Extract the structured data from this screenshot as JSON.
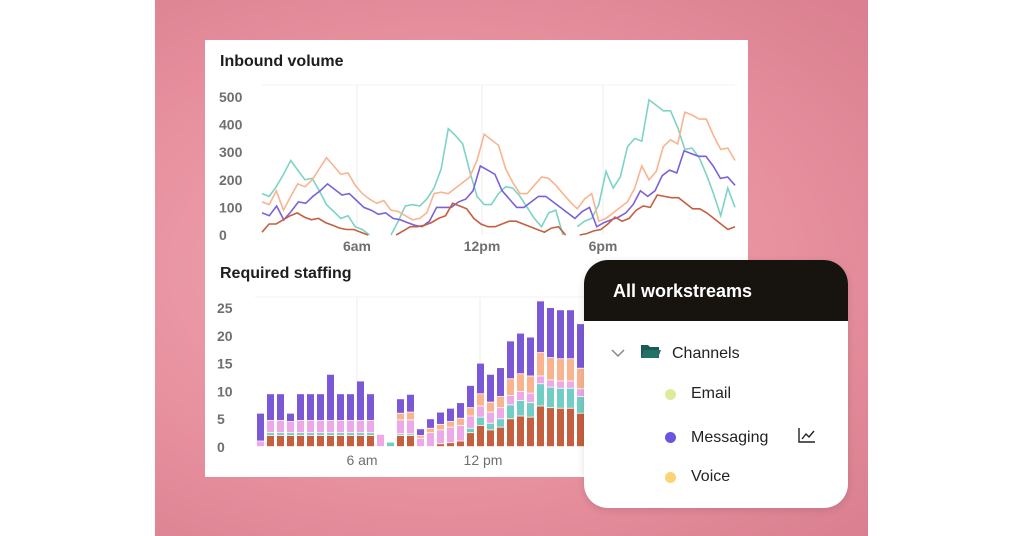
{
  "chart_data": [
    {
      "type": "line",
      "title": "Inbound volume",
      "ylim": [
        0,
        500
      ],
      "yticks": [
        "0",
        "100",
        "200",
        "300",
        "400",
        "500"
      ],
      "xticks": [
        "6am",
        "12pm",
        "6pm"
      ],
      "series": [
        {
          "name": "teal",
          "color": "#7dd3c6",
          "values": [
            150,
            140,
            175,
            220,
            270,
            235,
            200,
            205,
            160,
            110,
            85,
            60,
            70,
            30,
            20,
            0,
            null,
            null,
            0,
            50,
            105,
            110,
            105,
            130,
            170,
            240,
            385,
            360,
            330,
            230,
            140,
            110,
            110,
            150,
            175,
            170,
            140,
            100,
            60,
            30,
            80,
            90,
            0,
            null,
            30,
            50,
            60,
            110,
            230,
            170,
            210,
            320,
            350,
            340,
            490,
            470,
            450,
            450,
            390,
            310,
            315,
            280,
            220,
            150,
            70,
            170,
            100
          ]
        },
        {
          "name": "orange",
          "color": "#f9b48f",
          "values": [
            120,
            110,
            160,
            90,
            140,
            185,
            175,
            200,
            240,
            280,
            250,
            220,
            225,
            180,
            150,
            130,
            115,
            125,
            90,
            85,
            70,
            55,
            60,
            80,
            150,
            155,
            150,
            170,
            190,
            210,
            270,
            365,
            345,
            325,
            240,
            190,
            150,
            150,
            180,
            210,
            205,
            180,
            150,
            120,
            95,
            130,
            150,
            50,
            60,
            80,
            100,
            120,
            170,
            250,
            200,
            230,
            320,
            345,
            330,
            445,
            435,
            420,
            420,
            360,
            310,
            315,
            270
          ]
        },
        {
          "name": "purple",
          "color": "#7b61d9",
          "values": [
            80,
            70,
            105,
            55,
            85,
            120,
            115,
            140,
            160,
            185,
            165,
            145,
            150,
            125,
            100,
            90,
            75,
            80,
            60,
            55,
            45,
            35,
            30,
            50,
            100,
            100,
            100,
            120,
            130,
            160,
            250,
            235,
            220,
            160,
            130,
            100,
            100,
            120,
            140,
            140,
            120,
            100,
            80,
            60,
            85,
            100,
            30,
            45,
            55,
            65,
            80,
            110,
            160,
            140,
            160,
            215,
            235,
            225,
            305,
            295,
            285,
            285,
            250,
            205,
            210,
            180
          ]
        },
        {
          "name": "red",
          "color": "#c4603f",
          "values": [
            10,
            40,
            40,
            55,
            70,
            80,
            65,
            55,
            60,
            45,
            35,
            25,
            20,
            20,
            10,
            0,
            null,
            null,
            null,
            0,
            15,
            30,
            30,
            35,
            45,
            60,
            70,
            115,
            105,
            95,
            60,
            40,
            30,
            30,
            40,
            50,
            50,
            40,
            30,
            20,
            10,
            25,
            30,
            0,
            null,
            0,
            5,
            15,
            20,
            40,
            65,
            50,
            60,
            90,
            105,
            100,
            145,
            140,
            135,
            135,
            115,
            95,
            95,
            80,
            60,
            40,
            20,
            30
          ]
        }
      ]
    },
    {
      "type": "bar",
      "stacked": true,
      "title": "Required staffing",
      "ylim": [
        0,
        25
      ],
      "yticks": [
        "0",
        "5",
        "10",
        "15",
        "20",
        "25"
      ],
      "xticks": [
        "6 am",
        "12 pm"
      ],
      "series": [
        {
          "name": "red",
          "color": "#c4603f",
          "values": [
            0,
            2,
            2,
            2,
            2,
            2,
            2,
            2,
            2,
            2,
            2,
            2,
            0,
            0,
            2,
            2,
            0,
            0,
            0.5,
            0.7,
            1,
            2.5,
            3.8,
            3,
            3.5,
            5,
            5.5,
            5.3,
            7.3,
            7,
            6.9,
            6.9,
            6,
            4.8
          ]
        },
        {
          "name": "teal",
          "color": "#72cec4",
          "values": [
            0,
            0.5,
            0.5,
            0.5,
            0.5,
            0.5,
            0.5,
            0.5,
            0.5,
            0.5,
            0.5,
            0.5,
            0,
            0.8,
            0.3,
            0.3,
            0,
            0,
            0,
            0,
            0,
            0.8,
            1.5,
            1.2,
            1.5,
            2.5,
            2.8,
            2.6,
            4,
            3.7,
            3.6,
            3.6,
            3,
            2.4
          ]
        },
        {
          "name": "pink",
          "color": "#eda8e6",
          "values": [
            1,
            2.2,
            2.2,
            2,
            2.2,
            2.2,
            2.2,
            2.2,
            2.2,
            2.2,
            2.2,
            2.2,
            2.2,
            0,
            2.5,
            2.5,
            1.5,
            2.5,
            2.5,
            2.8,
            2.8,
            2.2,
            2,
            2,
            2,
            1.7,
            1.6,
            1.7,
            1.4,
            1.3,
            1.3,
            1.3,
            1.4,
            1.5
          ]
        },
        {
          "name": "orange",
          "color": "#f9b48f",
          "values": [
            0,
            0,
            0,
            0,
            0,
            0,
            0,
            0,
            0,
            0,
            0,
            0,
            0,
            0,
            1.2,
            1.4,
            0.5,
            0.8,
            1,
            1,
            1.3,
            1.5,
            2.2,
            1.8,
            2,
            3,
            3.2,
            3.1,
            4.2,
            4,
            4,
            4,
            3.7,
            3.2
          ]
        },
        {
          "name": "purple",
          "color": "#7b59d6",
          "values": [
            5,
            4.8,
            4.8,
            1.5,
            4.8,
            4.8,
            4.8,
            8.3,
            4.8,
            4.8,
            7.1,
            4.8,
            0,
            0,
            2.6,
            3.2,
            1.2,
            1.7,
            2.2,
            2.4,
            2.8,
            4,
            5.5,
            5,
            5.2,
            6.8,
            7.3,
            7,
            9.3,
            9,
            8.8,
            8.8,
            8,
            6.5
          ]
        }
      ]
    }
  ],
  "panel": {
    "title": "All workstreams",
    "group": "Channels",
    "items": [
      {
        "label": "Email",
        "color": "#dcec9a"
      },
      {
        "label": "Messaging",
        "color": "#6a55e0"
      },
      {
        "label": "Voice",
        "color": "#fdd373"
      }
    ]
  }
}
